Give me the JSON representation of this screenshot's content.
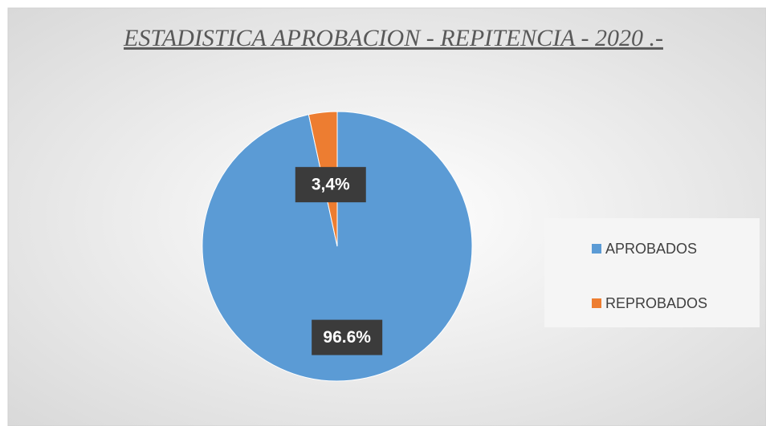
{
  "chart_data": {
    "type": "pie",
    "title": "ESTADISTICA APROBACION - REPITENCIA - 2020 .-",
    "categories": [
      "APROBADOS",
      "REPROBADOS"
    ],
    "values": [
      96.6,
      3.4
    ],
    "value_labels": [
      "96.6%",
      "3,4%"
    ],
    "colors": [
      "#5b9bd5",
      "#ed7d31"
    ],
    "legend": "right"
  }
}
